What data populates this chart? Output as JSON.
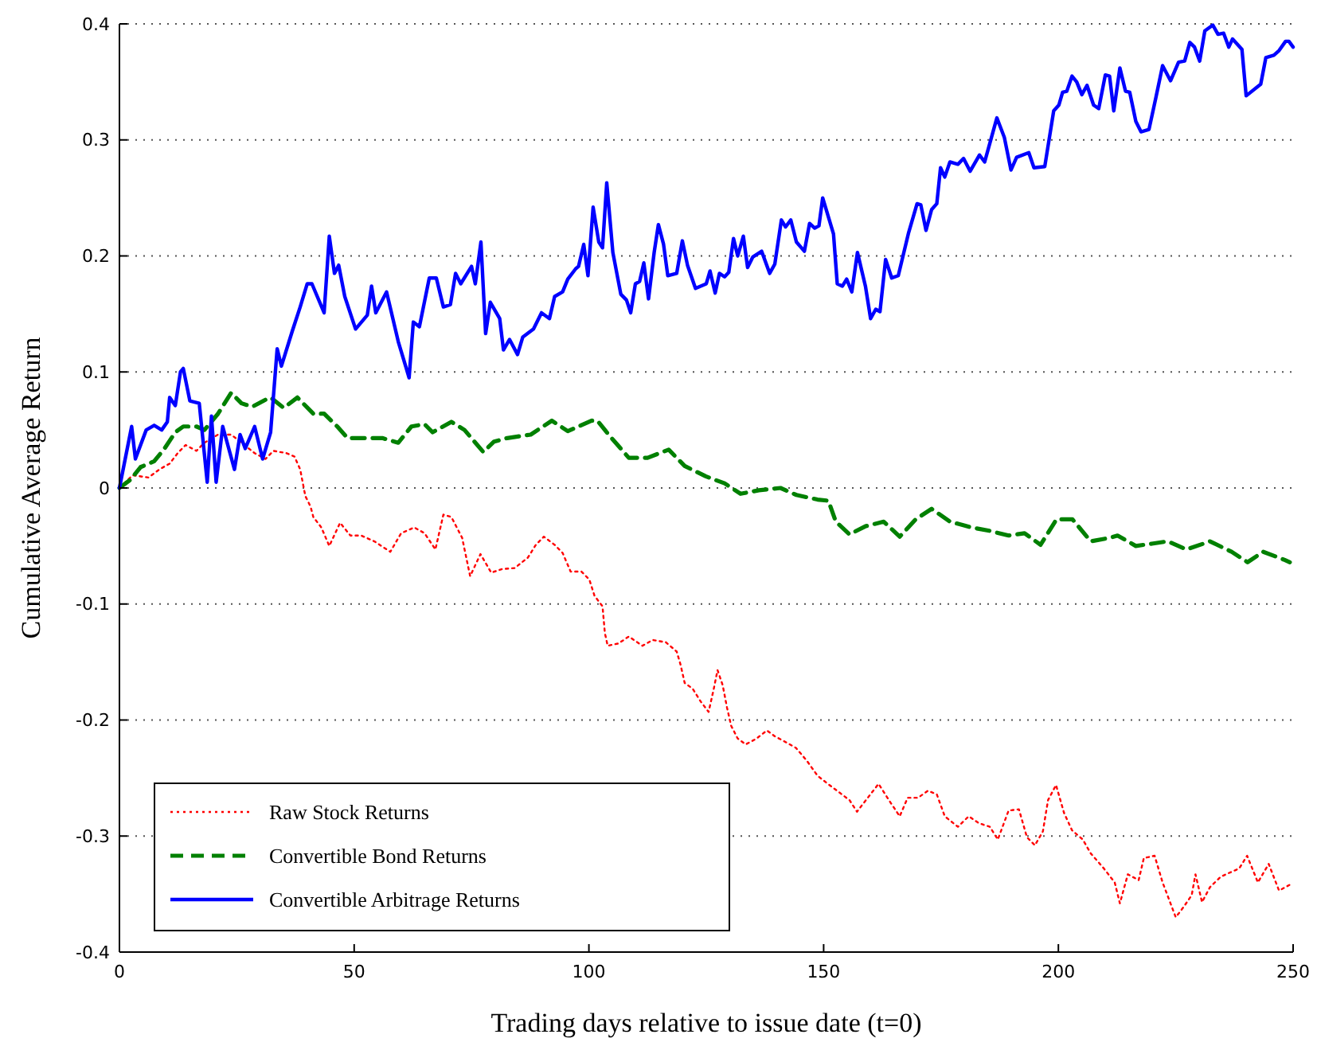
{
  "chart_data": {
    "type": "line",
    "xlabel": "Trading days relative to issue date (t=0)",
    "ylabel": "Cumulative Average Return",
    "xlim": [
      0,
      250
    ],
    "ylim": [
      -0.4,
      0.4
    ],
    "xticks": [
      0,
      50,
      100,
      150,
      200,
      250
    ],
    "yticks": [
      -0.4,
      -0.3,
      -0.2,
      -0.1,
      0,
      0.1,
      0.2,
      0.3,
      0.4
    ],
    "grid": "y",
    "legend": "bottom left",
    "marker": "none",
    "series": [
      {
        "name": "Raw Stock Returns",
        "color": "#ff0000",
        "line_style": "dotted",
        "x": [
          0,
          2.8,
          6.2,
          8.5,
          10.7,
          12.4,
          14.1,
          16.4,
          18.1,
          21,
          23.8,
          26,
          28.8,
          31.1,
          32.8,
          35.6,
          37.3,
          38.5,
          39.6,
          40.7,
          41.3,
          43,
          44.7,
          47,
          49.2,
          51.5,
          54.3,
          57.7,
          60,
          62.8,
          65,
          67.3,
          69,
          70.7,
          73,
          74.7,
          76.9,
          79.2,
          81.4,
          84.2,
          87,
          88.7,
          90.4,
          92.7,
          94.4,
          96.1,
          98.4,
          100.1,
          101.2,
          102.9,
          103.4,
          104,
          106.3,
          108.5,
          111.4,
          113.6,
          116.4,
          118.7,
          119.5,
          120.4,
          122.1,
          123.8,
          125.5,
          126.6,
          127.4,
          128.5,
          129.4,
          130.3,
          131.7,
          133.4,
          135.7,
          137.9,
          139.6,
          141.9,
          144.1,
          146.4,
          148.7,
          150.9,
          153.2,
          155.5,
          157.1,
          159.4,
          161.7,
          163.9,
          166.2,
          167.9,
          170.1,
          172.2,
          174.1,
          175.8,
          178.6,
          180.9,
          183.1,
          185.4,
          187.1,
          189.4,
          191.6,
          193.3,
          195,
          196.7,
          197.8,
          199.5,
          201.2,
          202.9,
          205.2,
          206.9,
          209.7,
          212,
          213.1,
          214.8,
          217.1,
          218.2,
          220.5,
          222.2,
          225,
          226.7,
          228.4,
          229.2,
          230.6,
          232.3,
          234.6,
          236.8,
          238.5,
          240.2,
          242.5,
          244.8,
          247,
          249.3
        ],
        "values": [
          0,
          0.011,
          0.009,
          0.016,
          0.021,
          0.03,
          0.037,
          0.032,
          0.039,
          0.046,
          0.046,
          0.039,
          0.03,
          0.025,
          0.032,
          0.03,
          0.027,
          0.016,
          -0.007,
          -0.016,
          -0.025,
          -0.034,
          -0.05,
          -0.03,
          -0.041,
          -0.041,
          -0.046,
          -0.055,
          -0.039,
          -0.034,
          -0.039,
          -0.053,
          -0.023,
          -0.025,
          -0.043,
          -0.076,
          -0.057,
          -0.073,
          -0.07,
          -0.069,
          -0.06,
          -0.049,
          -0.042,
          -0.049,
          -0.056,
          -0.072,
          -0.072,
          -0.079,
          -0.093,
          -0.102,
          -0.125,
          -0.136,
          -0.134,
          -0.128,
          -0.136,
          -0.131,
          -0.133,
          -0.141,
          -0.152,
          -0.168,
          -0.173,
          -0.184,
          -0.193,
          -0.173,
          -0.157,
          -0.17,
          -0.189,
          -0.205,
          -0.216,
          -0.221,
          -0.216,
          -0.209,
          -0.214,
          -0.219,
          -0.224,
          -0.235,
          -0.248,
          -0.255,
          -0.262,
          -0.269,
          -0.279,
          -0.267,
          -0.255,
          -0.269,
          -0.283,
          -0.267,
          -0.267,
          -0.261,
          -0.264,
          -0.283,
          -0.292,
          -0.283,
          -0.289,
          -0.292,
          -0.303,
          -0.278,
          -0.277,
          -0.301,
          -0.308,
          -0.296,
          -0.269,
          -0.256,
          -0.28,
          -0.295,
          -0.303,
          -0.315,
          -0.328,
          -0.34,
          -0.358,
          -0.333,
          -0.338,
          -0.319,
          -0.317,
          -0.34,
          -0.37,
          -0.361,
          -0.351,
          -0.333,
          -0.357,
          -0.344,
          -0.335,
          -0.331,
          -0.328,
          -0.317,
          -0.34,
          -0.324,
          -0.347,
          -0.342
        ]
      },
      {
        "name": "Convertible Bond Returns",
        "color": "#008000",
        "line_style": "dashed",
        "x": [
          0,
          2.3,
          4.5,
          7.4,
          9.6,
          11.9,
          13.6,
          16.4,
          18.1,
          21,
          23.8,
          26,
          28.3,
          31.1,
          32.2,
          35,
          37.9,
          41.3,
          43.6,
          46.4,
          48.6,
          51.5,
          53.7,
          56,
          59.4,
          62.2,
          65,
          66.7,
          70.7,
          73.5,
          77.5,
          79.8,
          82.6,
          87.6,
          92.1,
          95.5,
          100.6,
          101.8,
          104.6,
          108.5,
          112.5,
          117,
          120.4,
          124.9,
          128.9,
          132.3,
          136.2,
          140.8,
          144.2,
          148.7,
          151,
          152.6,
          155.5,
          158.9,
          162.8,
          166.2,
          169.6,
          173,
          176.9,
          181.5,
          185.4,
          189.4,
          192.8,
          196.2,
          199.6,
          203,
          206.9,
          210.9,
          212.6,
          216.5,
          219.9,
          223.3,
          227.3,
          232.3,
          236.9,
          240.3,
          243.6,
          248.2,
          249.3
        ],
        "values": [
          0,
          0.007,
          0.018,
          0.023,
          0.034,
          0.048,
          0.053,
          0.053,
          0.05,
          0.064,
          0.082,
          0.073,
          0.07,
          0.076,
          0.078,
          0.069,
          0.078,
          0.064,
          0.064,
          0.053,
          0.043,
          0.043,
          0.043,
          0.043,
          0.039,
          0.053,
          0.055,
          0.048,
          0.057,
          0.05,
          0.031,
          0.04,
          0.043,
          0.046,
          0.058,
          0.049,
          0.058,
          0.058,
          0.044,
          0.026,
          0.026,
          0.033,
          0.019,
          0.01,
          0.004,
          -0.005,
          -0.002,
          0,
          -0.006,
          -0.01,
          -0.011,
          -0.029,
          -0.04,
          -0.033,
          -0.029,
          -0.042,
          -0.027,
          -0.018,
          -0.029,
          -0.034,
          -0.037,
          -0.041,
          -0.039,
          -0.049,
          -0.027,
          -0.027,
          -0.046,
          -0.043,
          -0.041,
          -0.05,
          -0.048,
          -0.046,
          -0.053,
          -0.046,
          -0.055,
          -0.064,
          -0.055,
          -0.062,
          -0.064
        ]
      },
      {
        "name": "Convertible Arbitrage Returns",
        "color": "#0000ff",
        "line_style": "solid",
        "x": [
          0,
          2.6,
          3.4,
          5.7,
          7.4,
          9,
          10.2,
          10.7,
          11.9,
          13,
          13.6,
          15,
          17,
          18.7,
          19.6,
          20.6,
          22,
          24.5,
          25.7,
          26.8,
          28.8,
          30.5,
          32.2,
          33.6,
          34.5,
          36.8,
          38.5,
          40,
          41,
          43.6,
          44.7,
          45.8,
          46.7,
          48,
          50.3,
          52.8,
          53.7,
          54.6,
          56.9,
          59.4,
          61.7,
          62.6,
          63.9,
          66,
          67.5,
          69,
          70.5,
          71.6,
          72.7,
          75,
          75.8,
          77,
          78,
          79,
          81,
          81.8,
          83.1,
          84.8,
          85.9,
          88.2,
          89.9,
          91.6,
          92.7,
          94.4,
          95.5,
          97.2,
          97.8,
          98.9,
          99.8,
          100.9,
          102.1,
          102.9,
          103.8,
          105.1,
          106.8,
          108,
          108.9,
          109.9,
          110.8,
          111.7,
          112.7,
          113.9,
          114.8,
          115.9,
          116.8,
          118.7,
          119.9,
          121,
          122.7,
          125,
          125.8,
          126.9,
          127.8,
          128.9,
          129.8,
          130.8,
          131.7,
          132.9,
          133.8,
          134.9,
          136.8,
          138.5,
          139.6,
          141,
          141.9,
          143,
          144.2,
          145.9,
          147,
          148.1,
          149,
          149.8,
          152.1,
          152.9,
          154,
          154.9,
          156,
          157.2,
          158.9,
          160,
          161.1,
          162,
          163.2,
          164.5,
          165.9,
          168.1,
          169.9,
          170.7,
          171.8,
          173,
          174.1,
          174.9,
          175.8,
          176.9,
          178.6,
          179.8,
          181.2,
          183.2,
          184.3,
          186.9,
          188.5,
          189.9,
          191.1,
          193.7,
          194.8,
          197.1,
          199,
          200.1,
          200.9,
          201.8,
          202.9,
          203.9,
          205,
          206.1,
          207.5,
          208.6,
          210,
          210.9,
          211.8,
          213.1,
          214.3,
          215.2,
          216.5,
          217.6,
          219.3,
          220.8,
          222.2,
          223.9,
          225.6,
          226.9,
          228,
          229,
          230.1,
          231.2,
          232.9,
          234,
          235.2,
          236.3,
          237.1,
          239.1,
          240,
          243.1,
          244.2,
          245.9,
          247,
          248.4,
          249.1,
          250
        ],
        "values": [
          0,
          0.053,
          0.025,
          0.05,
          0.054,
          0.05,
          0.057,
          0.078,
          0.071,
          0.1,
          0.103,
          0.075,
          0.073,
          0.005,
          0.062,
          0.005,
          0.053,
          0.016,
          0.046,
          0.034,
          0.053,
          0.025,
          0.048,
          0.12,
          0.105,
          0.135,
          0.156,
          0.176,
          0.176,
          0.151,
          0.217,
          0.185,
          0.192,
          0.165,
          0.137,
          0.149,
          0.174,
          0.151,
          0.169,
          0.126,
          0.095,
          0.143,
          0.139,
          0.181,
          0.181,
          0.156,
          0.158,
          0.185,
          0.176,
          0.191,
          0.176,
          0.212,
          0.133,
          0.16,
          0.146,
          0.119,
          0.128,
          0.115,
          0.13,
          0.137,
          0.151,
          0.146,
          0.165,
          0.169,
          0.18,
          0.189,
          0.191,
          0.21,
          0.183,
          0.242,
          0.212,
          0.207,
          0.263,
          0.203,
          0.167,
          0.162,
          0.151,
          0.176,
          0.178,
          0.194,
          0.163,
          0.203,
          0.227,
          0.21,
          0.183,
          0.185,
          0.213,
          0.192,
          0.172,
          0.176,
          0.187,
          0.168,
          0.185,
          0.182,
          0.186,
          0.215,
          0.2,
          0.217,
          0.19,
          0.199,
          0.204,
          0.185,
          0.193,
          0.231,
          0.225,
          0.231,
          0.212,
          0.204,
          0.228,
          0.224,
          0.226,
          0.25,
          0.219,
          0.176,
          0.174,
          0.18,
          0.169,
          0.203,
          0.174,
          0.146,
          0.154,
          0.152,
          0.197,
          0.181,
          0.183,
          0.22,
          0.245,
          0.244,
          0.222,
          0.24,
          0.245,
          0.276,
          0.268,
          0.281,
          0.279,
          0.284,
          0.273,
          0.287,
          0.281,
          0.319,
          0.302,
          0.274,
          0.285,
          0.289,
          0.276,
          0.277,
          0.325,
          0.33,
          0.341,
          0.342,
          0.355,
          0.35,
          0.339,
          0.347,
          0.33,
          0.327,
          0.356,
          0.355,
          0.325,
          0.362,
          0.342,
          0.341,
          0.316,
          0.307,
          0.309,
          0.337,
          0.364,
          0.351,
          0.367,
          0.368,
          0.384,
          0.38,
          0.368,
          0.394,
          0.399,
          0.391,
          0.392,
          0.38,
          0.387,
          0.378,
          0.338,
          0.348,
          0.371,
          0.373,
          0.377,
          0.385,
          0.385,
          0.38
        ]
      }
    ]
  }
}
